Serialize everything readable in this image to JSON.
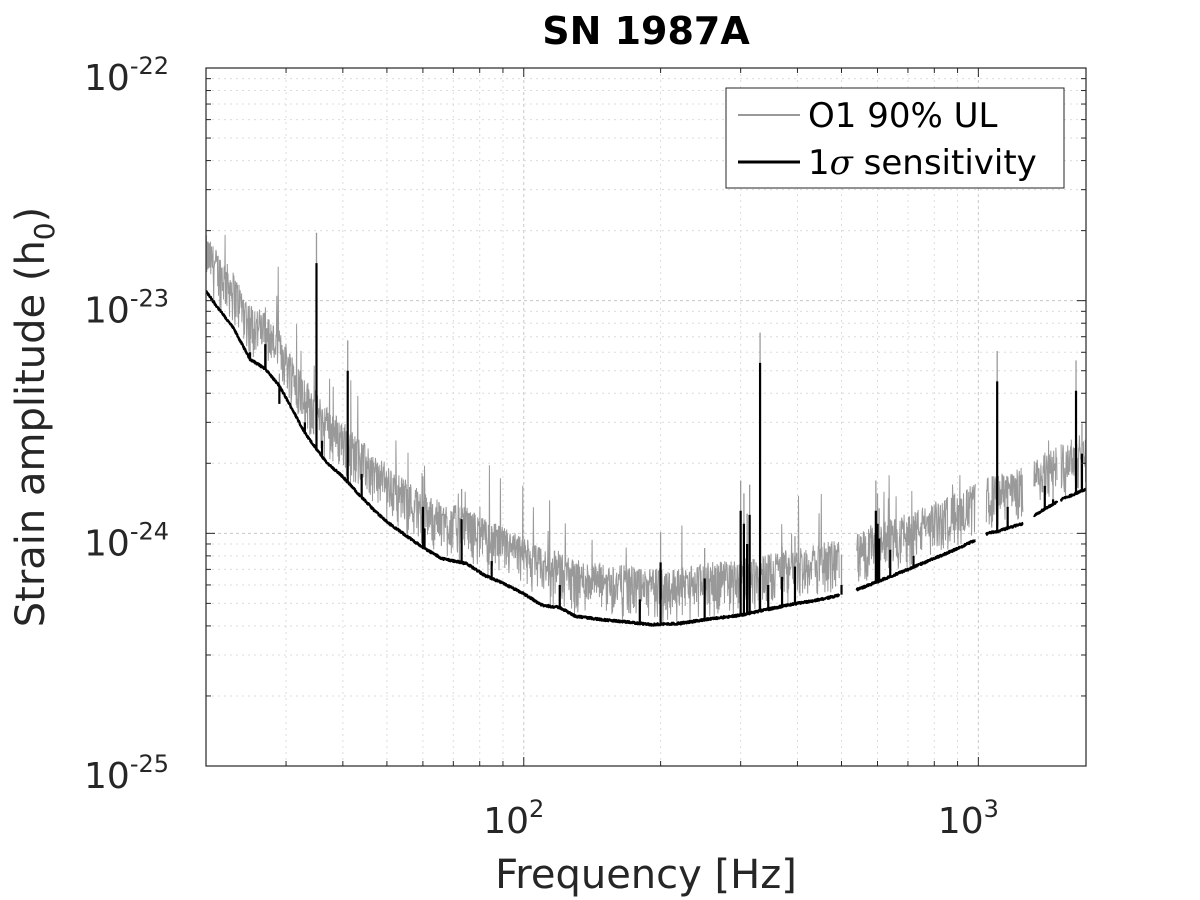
{
  "chart_data": {
    "type": "line",
    "title": "SN 1987A",
    "xlabel": "Frequency [Hz]",
    "ylabel_main": "Strain amplitude (h",
    "ylabel_sub": "0",
    "ylabel_close": ")",
    "x_scale": "log",
    "y_scale": "log",
    "xlim": [
      20,
      1725
    ],
    "ylim": [
      1e-25,
      1e-22
    ],
    "grid": true,
    "legend_position": "top-right",
    "x_ticks": [
      {
        "value": 100,
        "base": "10",
        "exp": "2"
      },
      {
        "value": 1000,
        "base": "10",
        "exp": "3"
      }
    ],
    "y_ticks": [
      {
        "value": 1e-22,
        "base": "10",
        "exp": "-22"
      },
      {
        "value": 1e-23,
        "base": "10",
        "exp": "-23"
      },
      {
        "value": 1e-24,
        "base": "10",
        "exp": "-24"
      },
      {
        "value": 1e-25,
        "base": "10",
        "exp": "-25"
      }
    ],
    "series": [
      {
        "name": "O1 90% UL",
        "color": "#999999",
        "band_ratio_low": 1.0,
        "band_ratio_high": 1.75
      },
      {
        "name_prefix": "1",
        "name_symbol": "σ",
        "name_suffix": " sensitivity",
        "color": "#000000",
        "baseline": [
          [
            20,
            1.1e-23
          ],
          [
            21,
            9.6e-24
          ],
          [
            23,
            7.6e-24
          ],
          [
            25,
            5.6e-24
          ],
          [
            27,
            5.1e-24
          ],
          [
            29,
            4.3e-24
          ],
          [
            31,
            3.4e-24
          ],
          [
            33,
            2.7e-24
          ],
          [
            35,
            2.3e-24
          ],
          [
            37,
            2e-24
          ],
          [
            40,
            1.75e-24
          ],
          [
            43,
            1.5e-24
          ],
          [
            47,
            1.25e-24
          ],
          [
            50,
            1.12e-24
          ],
          [
            55,
            9.8e-25
          ],
          [
            60,
            8.7e-25
          ],
          [
            66,
            7.8e-25
          ],
          [
            75,
            7.4e-25
          ],
          [
            82,
            6.6e-25
          ],
          [
            90,
            6.1e-25
          ],
          [
            100,
            5.5e-25
          ],
          [
            110,
            4.9e-25
          ],
          [
            120,
            4.8e-25
          ],
          [
            130,
            4.4e-25
          ],
          [
            150,
            4.25e-25
          ],
          [
            170,
            4.15e-25
          ],
          [
            190,
            4.05e-25
          ],
          [
            220,
            4.1e-25
          ],
          [
            260,
            4.3e-25
          ],
          [
            300,
            4.45e-25
          ],
          [
            350,
            4.75e-25
          ],
          [
            400,
            5e-25
          ],
          [
            450,
            5.2e-25
          ],
          [
            500,
            5.45e-25
          ],
          [
            550,
            5.8e-25
          ],
          [
            600,
            6.2e-25
          ],
          [
            650,
            6.6e-25
          ],
          [
            700,
            7e-25
          ],
          [
            800,
            7.8e-25
          ],
          [
            900,
            8.6e-25
          ],
          [
            990,
            9.4e-25
          ],
          [
            1050,
            1e-24
          ],
          [
            1100,
            1.02e-24
          ],
          [
            1250,
            1.1e-24
          ],
          [
            1330,
            1.2e-24
          ],
          [
            1500,
            1.38e-24
          ],
          [
            1725,
            1.55e-24
          ]
        ],
        "gaps": [
          [
            495,
            540
          ],
          [
            985,
            1040
          ],
          [
            1255,
            1325
          ],
          [
            1490,
            1520
          ]
        ],
        "lines": [
          [
            25,
            6e-24
          ],
          [
            27,
            6.5e-24
          ],
          [
            29,
            3.6e-24
          ],
          [
            33,
            3e-24
          ],
          [
            35,
            1.45e-23
          ],
          [
            36,
            2.5e-24
          ],
          [
            41,
            5e-24
          ],
          [
            44,
            1.8e-24
          ],
          [
            60,
            1.3e-24
          ],
          [
            60.5,
            1.05e-24
          ],
          [
            73,
            1.15e-24
          ],
          [
            85,
            7.6e-25
          ],
          [
            120,
            6e-25
          ],
          [
            180,
            5.2e-25
          ],
          [
            200,
            7.5e-25
          ],
          [
            250,
            6.4e-25
          ],
          [
            300,
            1.25e-24
          ],
          [
            305,
            1.1e-24
          ],
          [
            310,
            9e-25
          ],
          [
            314,
            1.2e-24
          ],
          [
            331,
            5.4e-24
          ],
          [
            345,
            6e-25
          ],
          [
            370,
            6.5e-25
          ],
          [
            395,
            7.2e-25
          ],
          [
            500,
            6e-25
          ],
          [
            595,
            1.25e-24
          ],
          [
            600,
            1.1e-24
          ],
          [
            605,
            9.5e-25
          ],
          [
            640,
            8.5e-25
          ],
          [
            720,
            8e-25
          ],
          [
            1100,
            4.5e-24
          ],
          [
            1160,
            1.3e-24
          ],
          [
            1400,
            1.6e-24
          ],
          [
            1460,
            1.4e-24
          ],
          [
            1640,
            4.1e-24
          ],
          [
            1690,
            2.2e-24
          ]
        ]
      }
    ]
  }
}
